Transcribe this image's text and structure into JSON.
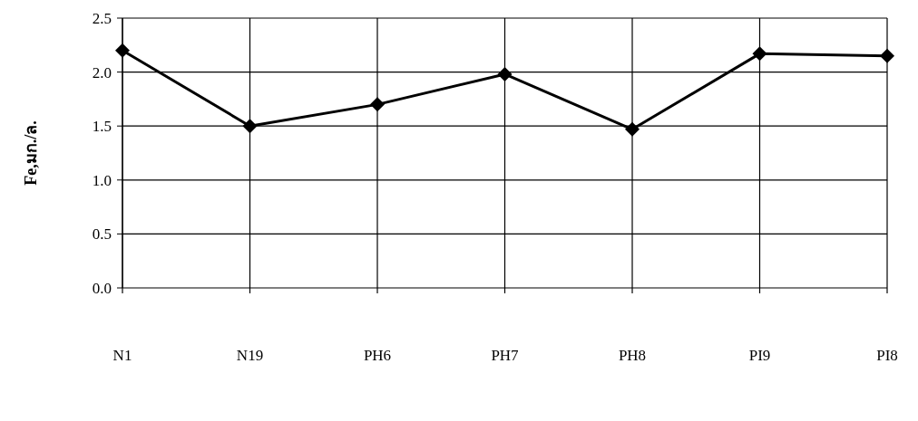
{
  "chart_data": {
    "type": "line",
    "ylabel": "Fe,มก./ล.",
    "categories": [
      "N1",
      "N19",
      "PH6",
      "PH7",
      "PH8",
      "PI9",
      "PI8"
    ],
    "series": [
      {
        "color": "#000000",
        "values": [
          2.2,
          1.5,
          1.7,
          1.98,
          1.47,
          2.17,
          2.15
        ]
      }
    ],
    "ylim": [
      0,
      2.5
    ],
    "yticks": [
      {
        "value": 0,
        "label": "0.0"
      },
      {
        "value": 0.5,
        "label": "0.5"
      },
      {
        "value": 1,
        "label": "1.0"
      },
      {
        "value": 1.5,
        "label": "1.5"
      },
      {
        "value": 2,
        "label": "2.0"
      },
      {
        "value": 2.5,
        "label": "2.5"
      }
    ],
    "grid": true,
    "marker": "diamond",
    "line_style": "solid"
  }
}
